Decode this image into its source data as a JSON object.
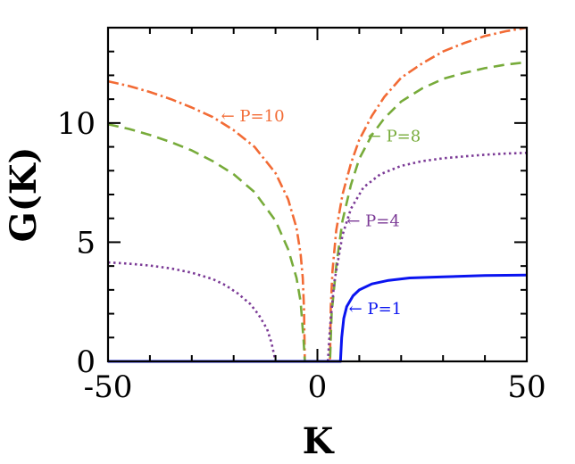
{
  "chart_data": {
    "type": "line",
    "xlabel": "K",
    "ylabel": "G(K)",
    "xlim": [
      -50,
      50
    ],
    "ylim": [
      0,
      14
    ],
    "x_ticks": [
      -50,
      0,
      50
    ],
    "x_tick_labels": [
      "-50",
      "0",
      "50"
    ],
    "y_ticks": [
      0,
      5,
      10
    ],
    "y_tick_labels": [
      "0",
      "5",
      "10"
    ],
    "grid": false,
    "series": [
      {
        "name": "P=10",
        "color": "#f26b35",
        "style": "dashdot",
        "points": [
          [
            -50,
            11.75
          ],
          [
            -45,
            11.55
          ],
          [
            -40,
            11.3
          ],
          [
            -35,
            11.0
          ],
          [
            -30,
            10.65
          ],
          [
            -25,
            10.25
          ],
          [
            -20,
            9.7
          ],
          [
            -15,
            9.0
          ],
          [
            -10,
            7.9
          ],
          [
            -7,
            6.8
          ],
          [
            -5,
            5.6
          ],
          [
            -4,
            4.5
          ],
          [
            -3.5,
            3.5
          ],
          [
            -3.2,
            2.2
          ],
          [
            -3.0,
            0
          ],
          [
            0,
            0
          ],
          [
            3.0,
            0
          ],
          [
            3.2,
            2.3
          ],
          [
            3.6,
            3.8
          ],
          [
            4.5,
            5.5
          ],
          [
            6,
            7.0
          ],
          [
            8,
            8.3
          ],
          [
            10,
            9.3
          ],
          [
            13,
            10.3
          ],
          [
            16,
            11.1
          ],
          [
            20,
            11.9
          ],
          [
            25,
            12.5
          ],
          [
            30,
            13.0
          ],
          [
            35,
            13.35
          ],
          [
            40,
            13.65
          ],
          [
            45,
            13.85
          ],
          [
            50,
            14.0
          ]
        ]
      },
      {
        "name": "P=8",
        "color": "#77ab3a",
        "style": "dashed",
        "points": [
          [
            -50,
            9.95
          ],
          [
            -45,
            9.75
          ],
          [
            -40,
            9.5
          ],
          [
            -35,
            9.2
          ],
          [
            -30,
            8.85
          ],
          [
            -25,
            8.4
          ],
          [
            -20,
            7.85
          ],
          [
            -15,
            7.1
          ],
          [
            -10,
            5.9
          ],
          [
            -7,
            4.7
          ],
          [
            -5,
            3.5
          ],
          [
            -4,
            2.5
          ],
          [
            -3.3,
            0.9
          ],
          [
            -3.0,
            0
          ],
          [
            0,
            0
          ],
          [
            3.0,
            0
          ],
          [
            3.4,
            2.0
          ],
          [
            4.5,
            4.0
          ],
          [
            6,
            5.9
          ],
          [
            8,
            7.4
          ],
          [
            10,
            8.5
          ],
          [
            13,
            9.5
          ],
          [
            16,
            10.2
          ],
          [
            20,
            10.9
          ],
          [
            25,
            11.45
          ],
          [
            30,
            11.85
          ],
          [
            35,
            12.1
          ],
          [
            40,
            12.3
          ],
          [
            45,
            12.45
          ],
          [
            50,
            12.55
          ]
        ]
      },
      {
        "name": "P=4",
        "color": "#7b3a96",
        "style": "dotted",
        "points": [
          [
            -50,
            4.15
          ],
          [
            -45,
            4.1
          ],
          [
            -40,
            4.02
          ],
          [
            -35,
            3.9
          ],
          [
            -30,
            3.72
          ],
          [
            -25,
            3.45
          ],
          [
            -22,
            3.2
          ],
          [
            -19,
            2.85
          ],
          [
            -16,
            2.4
          ],
          [
            -14,
            1.95
          ],
          [
            -12,
            1.35
          ],
          [
            -11,
            0.8
          ],
          [
            -10.3,
            0.25
          ],
          [
            -10,
            0
          ],
          [
            2.5,
            0
          ],
          [
            3.0,
            1.4
          ],
          [
            4,
            3.3
          ],
          [
            6,
            5.3
          ],
          [
            8,
            6.4
          ],
          [
            11,
            7.3
          ],
          [
            15,
            7.85
          ],
          [
            20,
            8.2
          ],
          [
            25,
            8.4
          ],
          [
            30,
            8.52
          ],
          [
            35,
            8.6
          ],
          [
            40,
            8.67
          ],
          [
            45,
            8.72
          ],
          [
            50,
            8.75
          ]
        ]
      },
      {
        "name": "P=1",
        "color": "#0a14f0",
        "style": "solid",
        "points": [
          [
            -50,
            0
          ],
          [
            5.5,
            0
          ],
          [
            5.8,
            1.0
          ],
          [
            6.3,
            1.8
          ],
          [
            7,
            2.3
          ],
          [
            8.5,
            2.75
          ],
          [
            10,
            3.0
          ],
          [
            13,
            3.25
          ],
          [
            17,
            3.4
          ],
          [
            22,
            3.5
          ],
          [
            30,
            3.55
          ],
          [
            40,
            3.6
          ],
          [
            50,
            3.62
          ]
        ]
      }
    ],
    "annotations": [
      {
        "text": "P=10",
        "arrow": "←",
        "x": -23,
        "y": 10.3,
        "color": "#f26b35"
      },
      {
        "text": "P=8",
        "arrow": "←",
        "x": 12,
        "y": 9.45,
        "color": "#77ab3a"
      },
      {
        "text": "P=4",
        "arrow": "←",
        "x": 7,
        "y": 5.9,
        "color": "#7b3a96"
      },
      {
        "text": "P=1",
        "arrow": "←",
        "x": 7.5,
        "y": 2.2,
        "color": "#0a14f0"
      }
    ]
  }
}
